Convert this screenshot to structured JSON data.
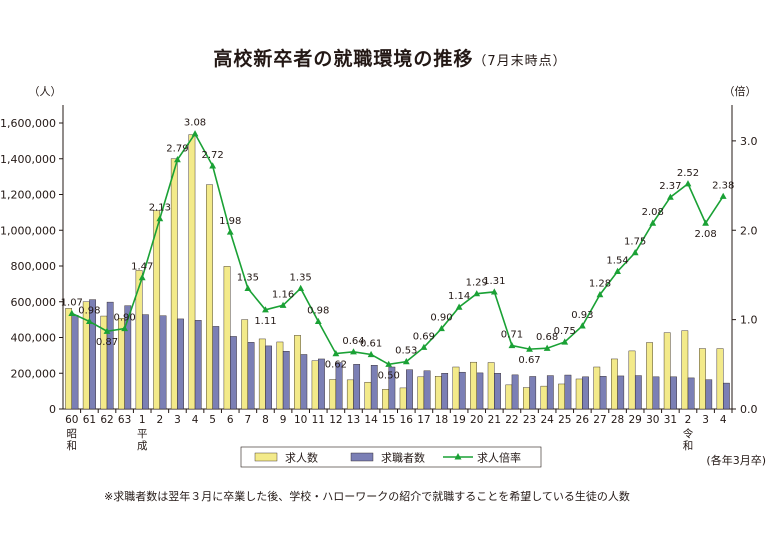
{
  "chart_data": {
    "type": "bar",
    "title": "高校新卒者の就職環境の推移",
    "subtitle": "（7月末時点）",
    "ylabel_left": "（人）",
    "ylabel_right": "（倍）",
    "xlabel": "(各年3月卒)",
    "ylim_left": [
      0,
      1600000
    ],
    "ylim_right": [
      0,
      3.2
    ],
    "yticks_left": [
      "0",
      "200,000",
      "400,000",
      "600,000",
      "800,000",
      "1,000,000",
      "1,200,000",
      "1,400,000",
      "1,600,000"
    ],
    "yticks_right": [
      "0.0",
      "1.0",
      "2.0",
      "3.0"
    ],
    "categories": [
      "60",
      "61",
      "62",
      "63",
      "1",
      "2",
      "3",
      "4",
      "5",
      "6",
      "7",
      "8",
      "9",
      "10",
      "11",
      "12",
      "13",
      "14",
      "15",
      "16",
      "17",
      "18",
      "19",
      "20",
      "21",
      "22",
      "23",
      "24",
      "25",
      "26",
      "27",
      "28",
      "29",
      "30",
      "31",
      "2",
      "3",
      "4"
    ],
    "era_labels": [
      {
        "index": 0,
        "text": "昭和"
      },
      {
        "index": 4,
        "text": "平成"
      },
      {
        "index": 35,
        "text": "令和"
      }
    ],
    "series": [
      {
        "name": "求人数",
        "kind": "bar",
        "color": "#f3ea8a",
        "values": [
          563000,
          600000,
          520000,
          508000,
          775000,
          1110000,
          1400000,
          1535000,
          1255000,
          798000,
          500000,
          392000,
          375000,
          412000,
          270000,
          165000,
          163000,
          150000,
          110000,
          118000,
          180000,
          183000,
          235000,
          262000,
          260000,
          135000,
          120000,
          128000,
          140000,
          168000,
          235000,
          280000,
          325000,
          372000,
          427000,
          438000,
          338000,
          338000
        ]
      },
      {
        "name": "求職者数",
        "kind": "bar",
        "color": "#7b7fb5",
        "values": [
          525000,
          612000,
          598000,
          578000,
          528000,
          522000,
          504000,
          496000,
          462000,
          406000,
          373000,
          353000,
          323000,
          305000,
          280000,
          260000,
          250000,
          245000,
          235000,
          220000,
          214000,
          200000,
          206000,
          202000,
          200000,
          191000,
          182000,
          187000,
          190000,
          180000,
          183000,
          185000,
          187000,
          180000,
          180000,
          174000,
          164000,
          145000
        ]
      },
      {
        "name": "求人倍率",
        "kind": "line",
        "color": "#1aa135",
        "values": [
          1.07,
          0.98,
          0.87,
          0.9,
          1.47,
          2.13,
          2.79,
          3.08,
          2.72,
          1.98,
          1.35,
          1.11,
          1.16,
          1.35,
          0.98,
          0.62,
          0.64,
          0.61,
          0.5,
          0.53,
          0.69,
          0.9,
          1.14,
          1.29,
          1.31,
          0.71,
          0.67,
          0.68,
          0.75,
          0.93,
          1.28,
          1.54,
          1.75,
          2.08,
          2.37,
          2.52,
          2.08,
          2.38
        ],
        "labels": [
          "1.07",
          "0.98",
          "0.87",
          "0.90",
          "1.47",
          "2.13",
          "2.79",
          "3.08",
          "2.72",
          "1.98",
          "1.35",
          "1.11",
          "1.16",
          "1.35",
          "0.98",
          "0.62",
          "0.64",
          "0.61",
          "0.50",
          "0.53",
          "0.69",
          "0.90",
          "1.14",
          "1.29",
          "1.31",
          "0.71",
          "0.67",
          "0.68",
          "0.75",
          "0.93",
          "1.28",
          "1.54",
          "1.75",
          "2.08",
          "2.37",
          "2.52",
          "2.08",
          "2.38"
        ]
      }
    ],
    "legend": {
      "position": "bottom",
      "items": [
        "求人数",
        "求職者数",
        "求人倍率"
      ]
    }
  },
  "footnote": "※求職者数は翌年３月に卒業した後、学校・ハローワークの紹介で就職することを希望している生徒の人数"
}
